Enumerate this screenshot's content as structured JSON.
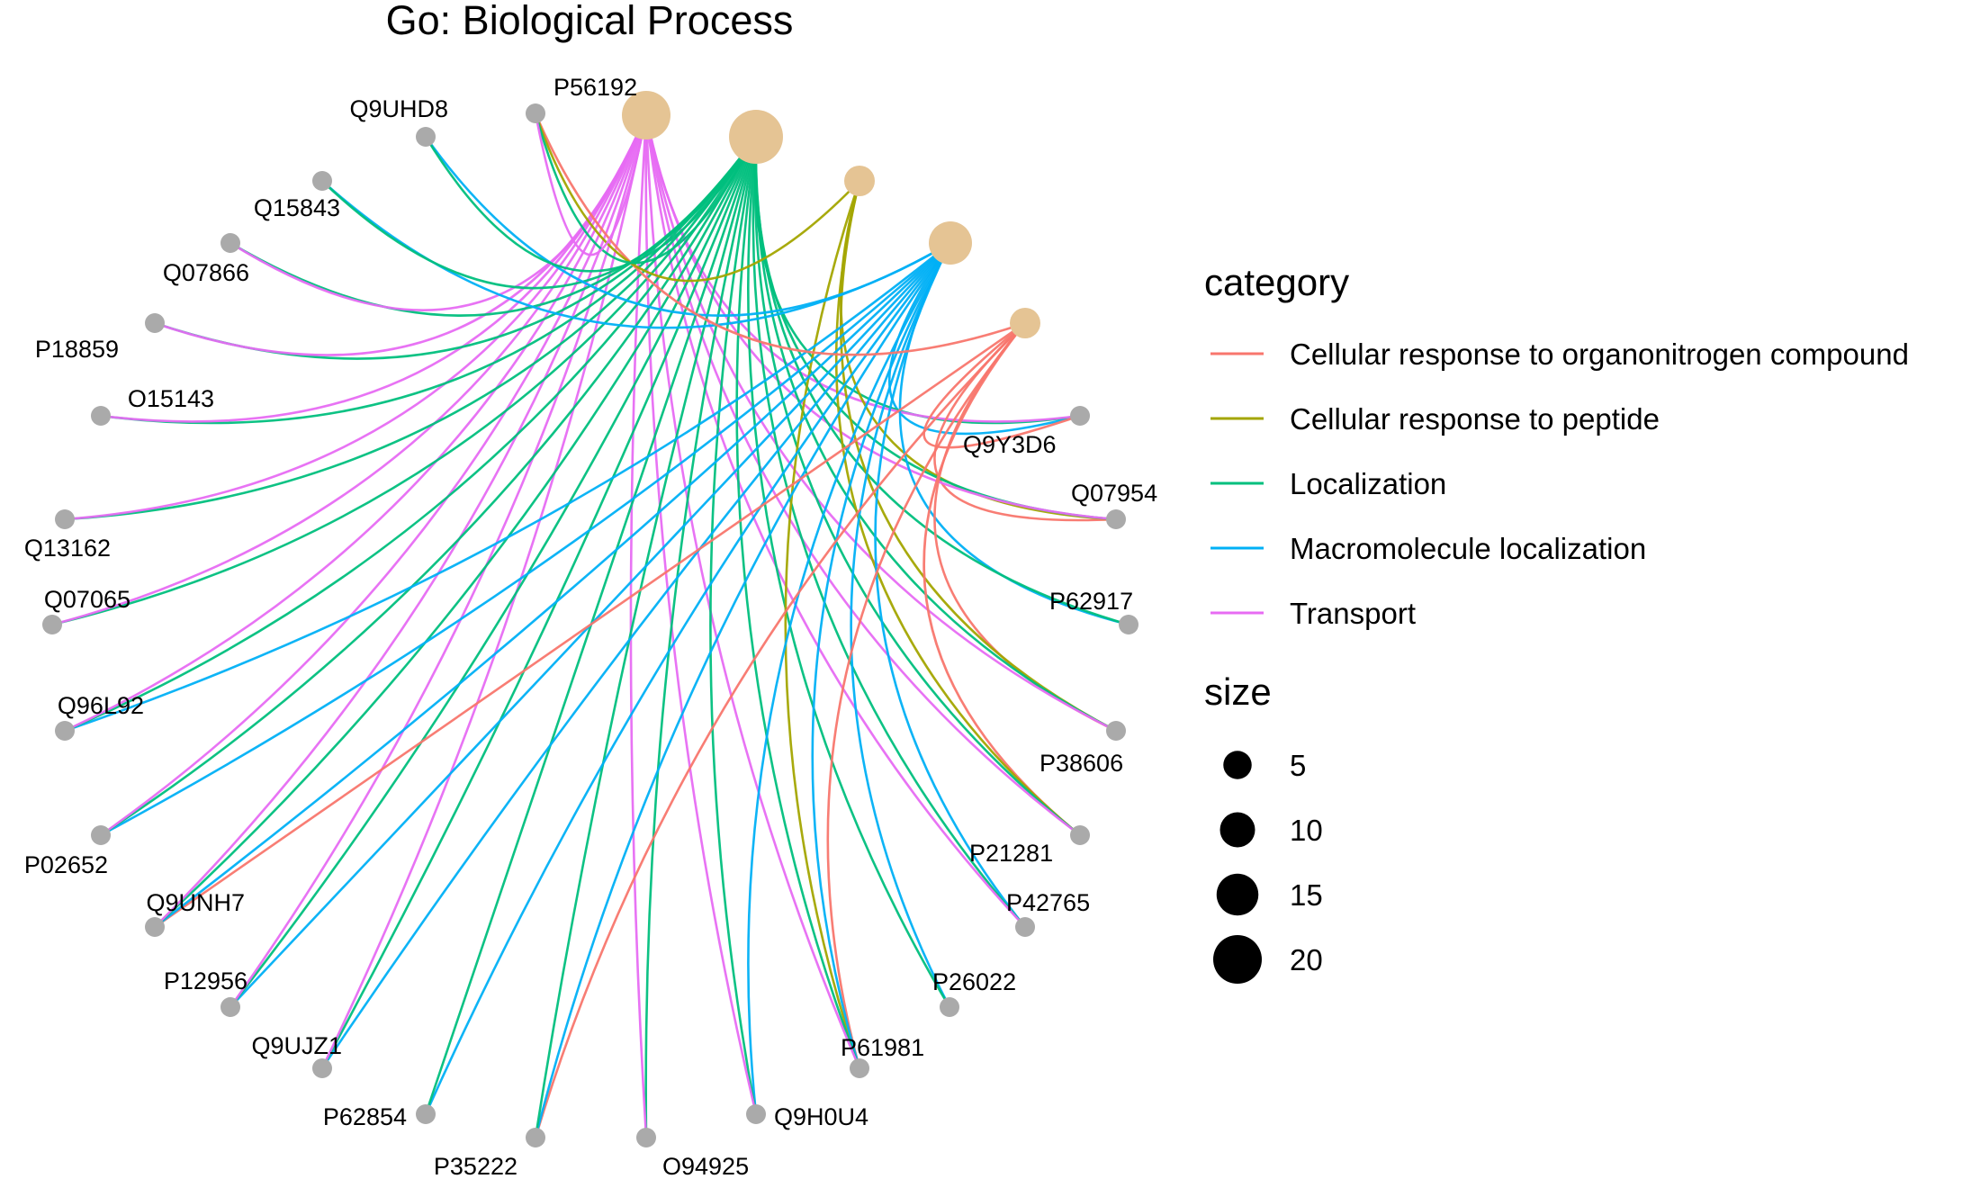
{
  "title": "Go: Biological Process",
  "legend": {
    "category_title": "category",
    "size_title": "size",
    "categories": [
      {
        "label": "Cellular response to organonitrogen compound",
        "color": "#F8766D"
      },
      {
        "label": "Cellular response to peptide",
        "color": "#A3A500"
      },
      {
        "label": "Localization",
        "color": "#00BF7D"
      },
      {
        "label": "Macromolecule localization",
        "color": "#00B0F6"
      },
      {
        "label": "Transport",
        "color": "#E76BF3"
      }
    ],
    "sizes": [
      {
        "label": "5",
        "value": 5
      },
      {
        "label": "10",
        "value": 10
      },
      {
        "label": "15",
        "value": 15
      },
      {
        "label": "20",
        "value": 20
      }
    ]
  },
  "term_node_color": "#E5C494",
  "gene_node_color": "#AAAAAA",
  "terms": [
    {
      "category": "Transport",
      "size": 17
    },
    {
      "category": "Localization",
      "size": 20
    },
    {
      "category": "Cellular response to peptide",
      "size": 7
    },
    {
      "category": "Macromolecule localization",
      "size": 14
    },
    {
      "category": "Cellular response to organonitrogen compound",
      "size": 7
    }
  ],
  "genes": [
    {
      "id": "Q9Y3D6",
      "categories": [
        "Macromolecule localization",
        "Localization",
        "Transport",
        "Cellular response to organonitrogen compound"
      ]
    },
    {
      "id": "Q07954",
      "categories": [
        "Cellular response to organonitrogen compound",
        "Cellular response to peptide",
        "Localization",
        "Transport"
      ]
    },
    {
      "id": "P62917",
      "categories": [
        "Macromolecule localization",
        "Localization"
      ]
    },
    {
      "id": "P38606",
      "categories": [
        "Cellular response to organonitrogen compound",
        "Cellular response to peptide",
        "Localization",
        "Transport"
      ]
    },
    {
      "id": "P21281",
      "categories": [
        "Cellular response to organonitrogen compound",
        "Cellular response to peptide",
        "Localization",
        "Transport"
      ]
    },
    {
      "id": "P42765",
      "categories": [
        "Macromolecule localization",
        "Localization",
        "Transport"
      ]
    },
    {
      "id": "P26022",
      "categories": [
        "Macromolecule localization",
        "Localization"
      ]
    },
    {
      "id": "P61981",
      "categories": [
        "Cellular response to organonitrogen compound",
        "Cellular response to peptide",
        "Macromolecule localization",
        "Localization",
        "Transport"
      ]
    },
    {
      "id": "Q9H0U4",
      "categories": [
        "Macromolecule localization",
        "Localization",
        "Transport"
      ]
    },
    {
      "id": "O94925",
      "categories": [
        "Localization",
        "Transport"
      ]
    },
    {
      "id": "P35222",
      "categories": [
        "Cellular response to organonitrogen compound",
        "Macromolecule localization",
        "Localization"
      ]
    },
    {
      "id": "P62854",
      "categories": [
        "Macromolecule localization",
        "Localization"
      ]
    },
    {
      "id": "Q9UJZ1",
      "categories": [
        "Macromolecule localization",
        "Localization",
        "Transport"
      ]
    },
    {
      "id": "P12956",
      "categories": [
        "Macromolecule localization",
        "Localization",
        "Transport"
      ]
    },
    {
      "id": "Q9UNH7",
      "categories": [
        "Cellular response to organonitrogen compound",
        "Macromolecule localization",
        "Localization",
        "Transport"
      ]
    },
    {
      "id": "P02652",
      "categories": [
        "Macromolecule localization",
        "Localization",
        "Transport"
      ]
    },
    {
      "id": "Q96L92",
      "categories": [
        "Macromolecule localization",
        "Localization",
        "Transport"
      ]
    },
    {
      "id": "Q07065",
      "categories": [
        "Localization",
        "Transport"
      ]
    },
    {
      "id": "Q13162",
      "categories": [
        "Localization",
        "Transport"
      ]
    },
    {
      "id": "O15143",
      "categories": [
        "Localization",
        "Transport"
      ]
    },
    {
      "id": "P18859",
      "categories": [
        "Localization",
        "Transport"
      ]
    },
    {
      "id": "Q07866",
      "categories": [
        "Localization",
        "Transport"
      ]
    },
    {
      "id": "Q15843",
      "categories": [
        "Macromolecule localization",
        "Localization"
      ]
    },
    {
      "id": "Q9UHD8",
      "categories": [
        "Macromolecule localization",
        "Localization"
      ]
    },
    {
      "id": "P56192",
      "categories": [
        "Cellular response to organonitrogen compound",
        "Cellular response to peptide",
        "Localization",
        "Transport"
      ]
    }
  ]
}
